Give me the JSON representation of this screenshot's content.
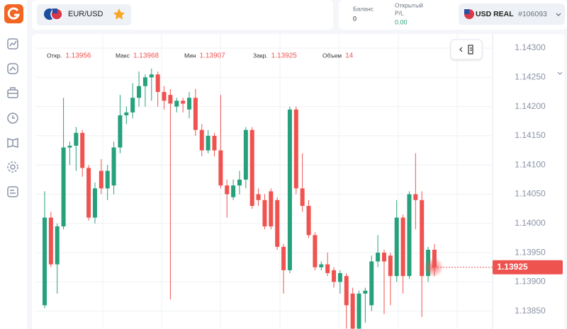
{
  "header": {
    "symbol": "EUR/USD",
    "balance_label": "Баланс",
    "balance": 0,
    "pl_label_1": "Открытый",
    "pl_label_2": "P/L",
    "pl_value": "0.00",
    "account": "USD REAL",
    "account_id": "#106093"
  },
  "chart_data": {
    "type": "candlestick",
    "ohlc_legend": [
      {
        "label": "Откр.",
        "value": 1.13956
      },
      {
        "label": "Макс",
        "value": 1.13968
      },
      {
        "label": "Мин",
        "value": 1.13907
      },
      {
        "label": "Закр.",
        "value": 1.13925
      },
      {
        "label": "Объем",
        "value": 14
      }
    ],
    "open": [
      1.1386,
      1.1401,
      1.1393,
      1.13995,
      1.1413,
      1.14133,
      1.14155,
      1.14095,
      1.1401,
      1.1409,
      1.1406,
      1.14065,
      1.1413,
      1.14185,
      1.1419,
      1.14215,
      1.14235,
      1.1425,
      1.14255,
      1.14225,
      1.1422,
      1.142,
      1.1421,
      1.14195,
      1.14215,
      1.1416,
      1.14125,
      1.1415,
      1.14125,
      1.14065,
      1.14045,
      1.14065,
      1.14075,
      1.1416,
      1.1405,
      1.1404,
      1.14055,
      1.1404,
      1.1396,
      1.1392,
      1.14195,
      1.1406,
      1.1403,
      1.1398,
      1.13925,
      1.1393,
      1.1392,
      1.139,
      1.1391,
      1.1388,
      1.1382,
      1.1388,
      1.1386,
      1.13935,
      1.1395,
      1.13945,
      1.1391,
      1.1401,
      1.1391,
      1.1405,
      1.1404,
      1.1391,
      1.13955
    ],
    "high": [
      1.14055,
      1.1402,
      1.14,
      1.14215,
      1.1414,
      1.14165,
      1.1416,
      1.141,
      1.1407,
      1.1411,
      1.141,
      1.1414,
      1.1422,
      1.142,
      1.1424,
      1.1426,
      1.14255,
      1.14265,
      1.1426,
      1.14235,
      1.1423,
      1.14215,
      1.14215,
      1.14225,
      1.1423,
      1.1417,
      1.1416,
      1.14155,
      1.1422,
      1.14075,
      1.14075,
      1.1409,
      1.14165,
      1.14165,
      1.1406,
      1.1405,
      1.1406,
      1.14045,
      1.13965,
      1.142,
      1.142,
      1.1412,
      1.1404,
      1.13985,
      1.13935,
      1.1395,
      1.13925,
      1.1392,
      1.13915,
      1.1389,
      1.13885,
      1.1389,
      1.13945,
      1.1398,
      1.13955,
      1.1395,
      1.1404,
      1.14015,
      1.14055,
      1.1412,
      1.14055,
      1.1396,
      1.13965
    ],
    "low": [
      1.13855,
      1.13925,
      1.1388,
      1.1399,
      1.141,
      1.1409,
      1.1408,
      1.14005,
      1.14,
      1.1405,
      1.1404,
      1.1405,
      1.1412,
      1.1417,
      1.1418,
      1.142,
      1.142,
      1.1421,
      1.142,
      1.14195,
      1.1387,
      1.1419,
      1.1419,
      1.1418,
      1.1415,
      1.14115,
      1.1412,
      1.14115,
      1.1406,
      1.1401,
      1.1404,
      1.1405,
      1.1406,
      1.14025,
      1.1403,
      1.1399,
      1.1399,
      1.13955,
      1.1388,
      1.13915,
      1.1405,
      1.1402,
      1.13975,
      1.1392,
      1.1392,
      1.1391,
      1.1389,
      1.1388,
      1.1382,
      1.1381,
      1.13815,
      1.1383,
      1.1385,
      1.13925,
      1.13845,
      1.1386,
      1.139,
      1.1388,
      1.13905,
      1.1399,
      1.1384,
      1.139,
      1.1391
    ],
    "close": [
      1.1401,
      1.1393,
      1.13995,
      1.1413,
      1.14133,
      1.14155,
      1.14095,
      1.1401,
      1.1406,
      1.1406,
      1.1409,
      1.1413,
      1.14185,
      1.1419,
      1.14215,
      1.14235,
      1.1425,
      1.14255,
      1.14225,
      1.1421,
      1.14205,
      1.1421,
      1.14205,
      1.14215,
      1.1416,
      1.14125,
      1.1415,
      1.14125,
      1.14065,
      1.1405,
      1.14065,
      1.14075,
      1.1416,
      1.1403,
      1.1404,
      1.13995,
      1.13995,
      1.1396,
      1.1392,
      1.14195,
      1.1406,
      1.1403,
      1.1398,
      1.13925,
      1.1393,
      1.13915,
      1.139,
      1.13915,
      1.1386,
      1.1382,
      1.1388,
      1.13885,
      1.13935,
      1.1395,
      1.13935,
      1.1391,
      1.1401,
      1.1391,
      1.1405,
      1.1404,
      1.1391,
      1.13955,
      1.13925
    ],
    "up_color": "#26a17b",
    "down_color": "#ef5350",
    "current_price": {
      "value": 1.13925,
      "label": "1.13925"
    },
    "ylim": [
      1.1382,
      1.1432
    ],
    "yticks": [
      {
        "value": 1.143,
        "label": "1.14300"
      },
      {
        "value": 1.1425,
        "label": "1.14250"
      },
      {
        "value": 1.142,
        "label": "1.14200"
      },
      {
        "value": 1.1415,
        "label": "1.14150"
      },
      {
        "value": 1.141,
        "label": "1.14100"
      },
      {
        "value": 1.1405,
        "label": "1.14050"
      },
      {
        "value": 1.14,
        "label": "1.14000"
      },
      {
        "value": 1.1395,
        "label": "1.13950"
      },
      {
        "value": 1.139,
        "label": "1.13900"
      },
      {
        "value": 1.1385,
        "label": "1.13850"
      }
    ],
    "grid": true
  }
}
